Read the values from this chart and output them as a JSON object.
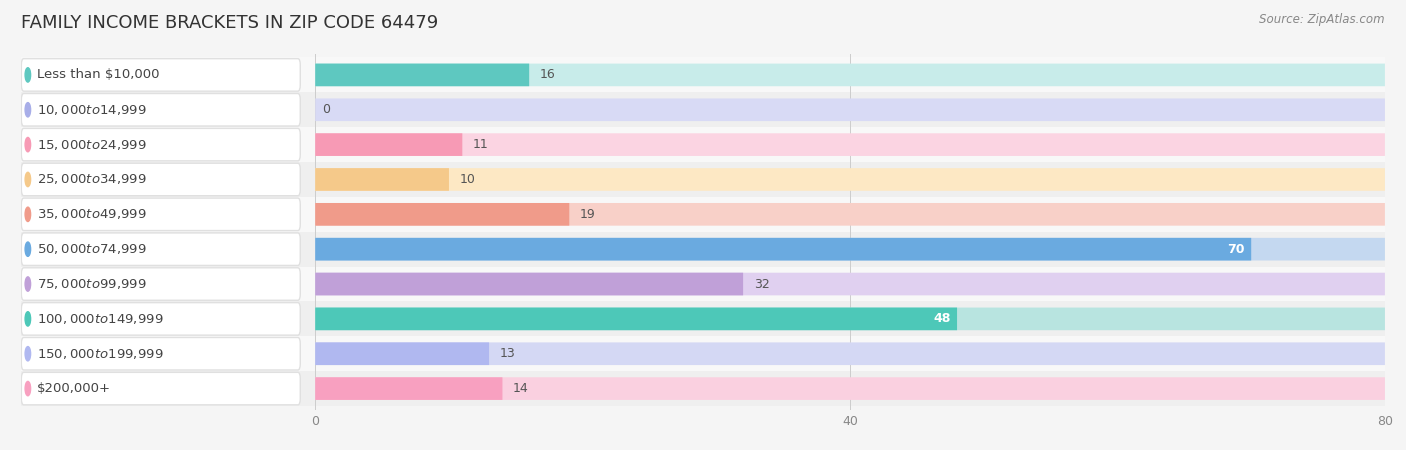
{
  "title": "FAMILY INCOME BRACKETS IN ZIP CODE 64479",
  "source": "Source: ZipAtlas.com",
  "categories": [
    "Less than $10,000",
    "$10,000 to $14,999",
    "$15,000 to $24,999",
    "$25,000 to $34,999",
    "$35,000 to $49,999",
    "$50,000 to $74,999",
    "$75,000 to $99,999",
    "$100,000 to $149,999",
    "$150,000 to $199,999",
    "$200,000+"
  ],
  "values": [
    16,
    0,
    11,
    10,
    19,
    70,
    32,
    48,
    13,
    14
  ],
  "bar_colors": [
    "#5ec8c0",
    "#a8aee8",
    "#f79ab5",
    "#f5c98a",
    "#f09b8a",
    "#6aaae0",
    "#c0a0d8",
    "#4dc8b8",
    "#b0b8f0",
    "#f8a0c0"
  ],
  "bar_bg_colors": [
    "#c8ecea",
    "#d8daf5",
    "#fbd4e2",
    "#fde8c4",
    "#f8d0c8",
    "#c4d8f0",
    "#e0d0f0",
    "#b8e4e0",
    "#d4d8f4",
    "#fad0e0"
  ],
  "row_bg_colors": [
    "#f8f8f8",
    "#efefef"
  ],
  "background_color": "#f5f5f5",
  "xlim_max": 80,
  "xticks": [
    0,
    40,
    80
  ],
  "title_fontsize": 13,
  "label_fontsize": 9.5,
  "value_fontsize": 9,
  "figsize": [
    14.06,
    4.5
  ],
  "dpi": 100
}
